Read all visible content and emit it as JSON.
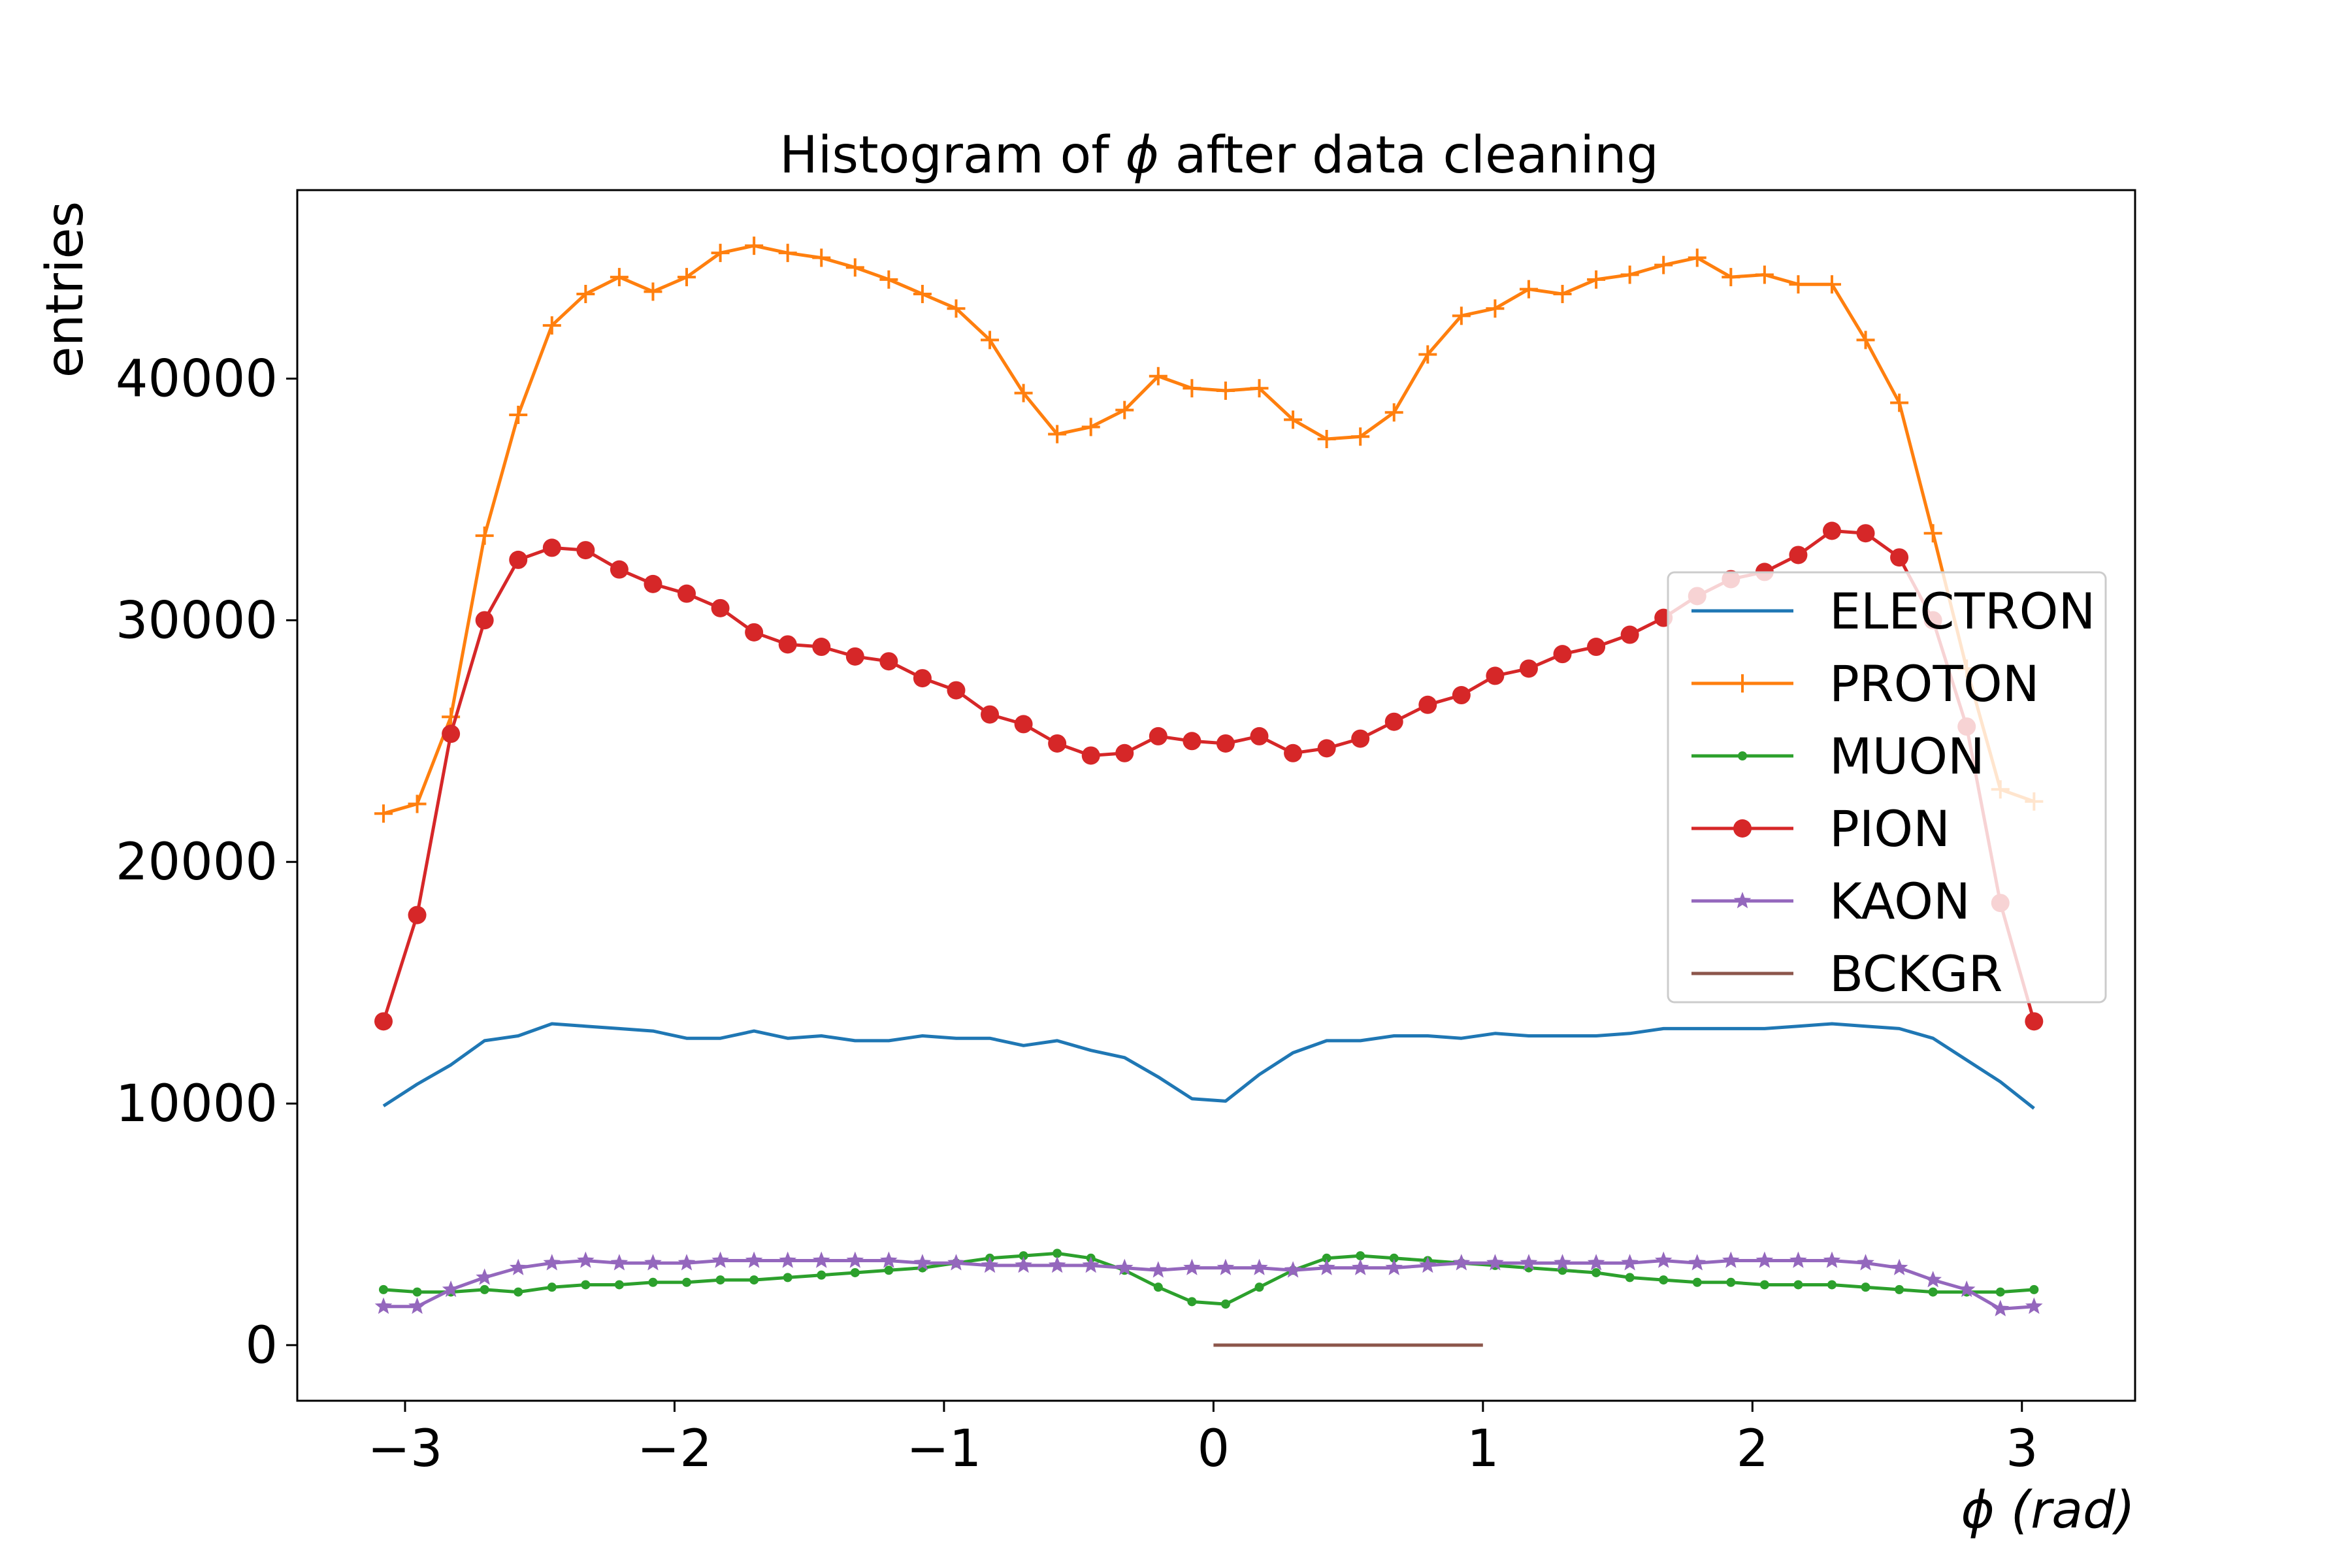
{
  "chart_data": {
    "type": "line",
    "title": "Histogram of ϕ after data cleaning",
    "title_prefix": "Histogram of ",
    "title_symbol": "ϕ",
    "title_suffix": " after data cleaning",
    "xlabel": "ϕ (rad)",
    "xlabel_symbol": "ϕ",
    "xlabel_unit": "(rad)",
    "ylabel": "entries",
    "xlim": [
      -3.4,
      3.42
    ],
    "ylim": [
      -2300,
      47800
    ],
    "xticks": [
      -3,
      -2,
      -1,
      0,
      1,
      2,
      3
    ],
    "xtick_labels": [
      "−3",
      "−2",
      "−1",
      "0",
      "1",
      "2",
      "3"
    ],
    "yticks": [
      0,
      10000,
      20000,
      30000,
      40000
    ],
    "ytick_labels": [
      "0",
      "10000",
      "20000",
      "30000",
      "40000"
    ],
    "grid": false,
    "legend_position": "center-right",
    "x": [
      -3.08,
      -2.955,
      -2.83,
      -2.705,
      -2.58,
      -2.455,
      -2.33,
      -2.205,
      -2.08,
      -1.955,
      -1.83,
      -1.705,
      -1.58,
      -1.455,
      -1.33,
      -1.205,
      -1.08,
      -0.955,
      -0.83,
      -0.705,
      -0.58,
      -0.455,
      -0.33,
      -0.205,
      -0.08,
      0.045,
      0.17,
      0.295,
      0.42,
      0.545,
      0.67,
      0.795,
      0.92,
      1.045,
      1.17,
      1.295,
      1.42,
      1.545,
      1.67,
      1.795,
      1.92,
      2.045,
      2.17,
      2.295,
      2.42,
      2.545,
      2.67,
      2.795,
      2.92,
      3.045
    ],
    "series": [
      {
        "name": "ELECTRON",
        "color": "#1f77b4",
        "marker": "none",
        "values": [
          9900,
          10800,
          11600,
          12600,
          12800,
          13300,
          13200,
          13100,
          13000,
          12700,
          12700,
          13000,
          12700,
          12800,
          12600,
          12600,
          12800,
          12700,
          12700,
          12400,
          12600,
          12200,
          11900,
          11100,
          10200,
          10100,
          11200,
          12100,
          12600,
          12600,
          12800,
          12800,
          12700,
          12900,
          12800,
          12800,
          12800,
          12900,
          13100,
          13100,
          13100,
          13100,
          13200,
          13300,
          13200,
          13100,
          12700,
          11800,
          10900,
          9800
        ]
      },
      {
        "name": "PROTON",
        "color": "#ff7f0e",
        "marker": "plus",
        "values": [
          22000,
          22400,
          26000,
          33500,
          38500,
          42200,
          43500,
          44200,
          43600,
          44200,
          45200,
          45500,
          45200,
          45000,
          44600,
          44100,
          43500,
          42900,
          41600,
          39400,
          37700,
          38000,
          38700,
          40100,
          39600,
          39500,
          39600,
          38300,
          37500,
          37600,
          38600,
          41000,
          42600,
          42900,
          43700,
          43500,
          44100,
          44300,
          44700,
          45000,
          44200,
          44300,
          43900,
          43900,
          41600,
          39000,
          33600,
          28000,
          23000,
          22500
        ]
      },
      {
        "name": "MUON",
        "color": "#2ca02c",
        "marker": "dot",
        "values": [
          2300,
          2200,
          2200,
          2300,
          2200,
          2400,
          2500,
          2500,
          2600,
          2600,
          2700,
          2700,
          2800,
          2900,
          3000,
          3100,
          3200,
          3400,
          3600,
          3700,
          3800,
          3600,
          3100,
          2400,
          1800,
          1700,
          2400,
          3100,
          3600,
          3700,
          3600,
          3500,
          3400,
          3300,
          3200,
          3100,
          3000,
          2800,
          2700,
          2600,
          2600,
          2500,
          2500,
          2500,
          2400,
          2300,
          2200,
          2200,
          2200,
          2300
        ]
      },
      {
        "name": "PION",
        "color": "#d62728",
        "marker": "circle",
        "values": [
          13400,
          17800,
          25300,
          30000,
          32500,
          33000,
          32900,
          32100,
          31500,
          31100,
          30500,
          29500,
          29000,
          28900,
          28500,
          28300,
          27600,
          27100,
          26100,
          25700,
          24900,
          24400,
          24500,
          25200,
          25000,
          24900,
          25200,
          24500,
          24700,
          25100,
          25800,
          26500,
          26900,
          27700,
          28000,
          28600,
          28900,
          29400,
          30100,
          31000,
          31700,
          32000,
          32700,
          33700,
          33600,
          32600,
          30000,
          25600,
          18300,
          13400
        ]
      },
      {
        "name": "KAON",
        "color": "#9467bd",
        "marker": "star",
        "values": [
          1600,
          1600,
          2300,
          2800,
          3200,
          3400,
          3500,
          3400,
          3400,
          3400,
          3500,
          3500,
          3500,
          3500,
          3500,
          3500,
          3400,
          3400,
          3300,
          3300,
          3300,
          3300,
          3200,
          3100,
          3200,
          3200,
          3200,
          3100,
          3200,
          3200,
          3200,
          3300,
          3400,
          3400,
          3400,
          3400,
          3400,
          3400,
          3500,
          3400,
          3500,
          3500,
          3500,
          3500,
          3400,
          3200,
          2700,
          2300,
          1500,
          1600
        ]
      },
      {
        "name": "BCKGR",
        "color": "#8c564b",
        "marker": "none",
        "x": [
          0.0,
          1.0
        ],
        "values": [
          0,
          0
        ]
      }
    ]
  }
}
